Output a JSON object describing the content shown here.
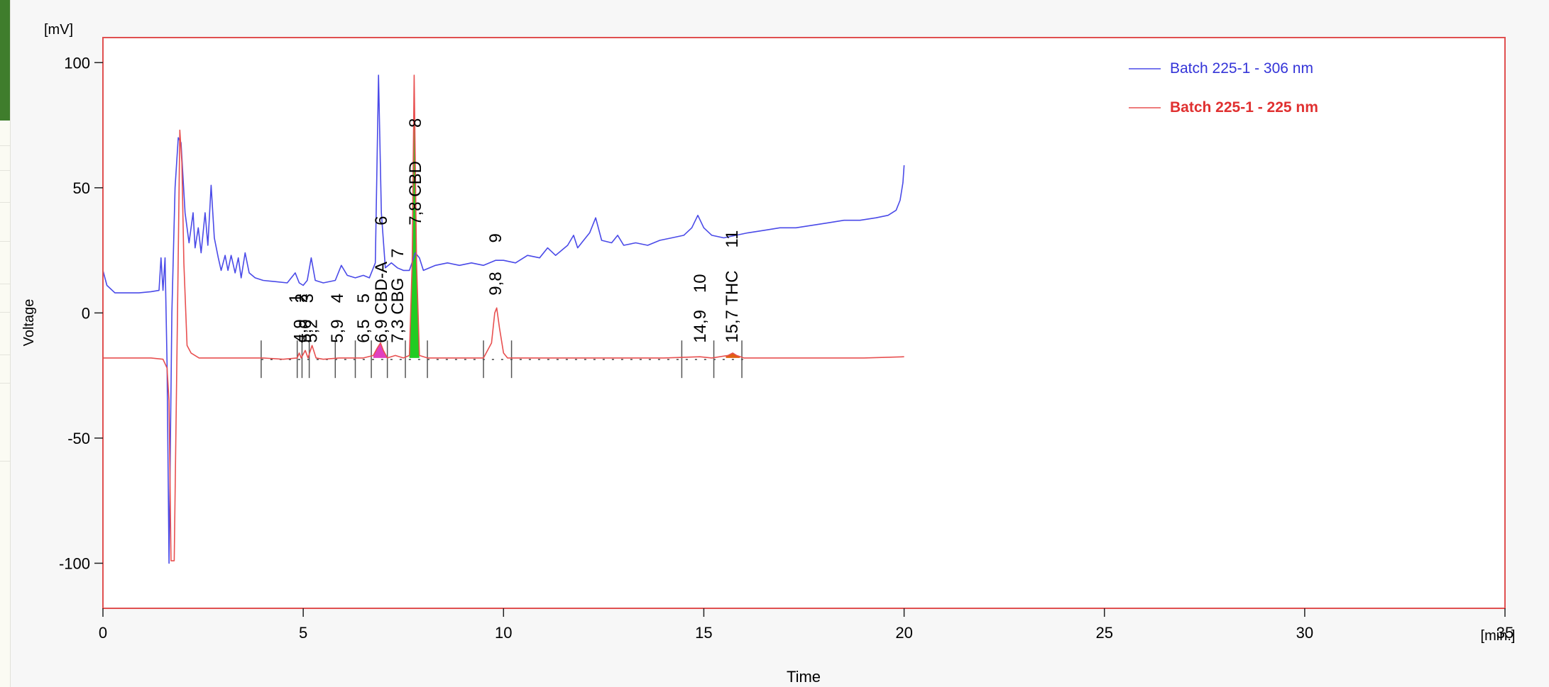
{
  "window": {
    "side_panel_color": "#3f7d2c"
  },
  "chart_data": {
    "type": "line",
    "xlabel": "Time",
    "ylabel": "Voltage",
    "x_unit": "[min.]",
    "y_unit": "[mV]",
    "xlim": [
      0,
      35
    ],
    "ylim": [
      -118,
      110
    ],
    "x_ticks": [
      0,
      5,
      10,
      15,
      20,
      25,
      30,
      35
    ],
    "y_ticks": [
      -100,
      -50,
      0,
      50,
      100
    ],
    "grid": false,
    "legend_position": "top-right",
    "plot_border_color": "#e05050",
    "series": [
      {
        "name": "Batch 225-1 - 306 nm",
        "color": "#4a4ae8",
        "points": [
          [
            0,
            17
          ],
          [
            0.1,
            11
          ],
          [
            0.3,
            8
          ],
          [
            0.6,
            8
          ],
          [
            0.9,
            8
          ],
          [
            1.2,
            8.5
          ],
          [
            1.4,
            9
          ],
          [
            1.45,
            22
          ],
          [
            1.5,
            9
          ],
          [
            1.55,
            22
          ],
          [
            1.6,
            -20
          ],
          [
            1.65,
            -100
          ],
          [
            1.72,
            0
          ],
          [
            1.8,
            50
          ],
          [
            1.88,
            70
          ],
          [
            1.95,
            68
          ],
          [
            2.05,
            40
          ],
          [
            2.15,
            28
          ],
          [
            2.25,
            40
          ],
          [
            2.3,
            26
          ],
          [
            2.38,
            34
          ],
          [
            2.45,
            24
          ],
          [
            2.55,
            40
          ],
          [
            2.62,
            27
          ],
          [
            2.7,
            51
          ],
          [
            2.78,
            30
          ],
          [
            2.88,
            22
          ],
          [
            2.95,
            17
          ],
          [
            3.05,
            23
          ],
          [
            3.12,
            17
          ],
          [
            3.2,
            23
          ],
          [
            3.3,
            16
          ],
          [
            3.38,
            22
          ],
          [
            3.45,
            14
          ],
          [
            3.55,
            24
          ],
          [
            3.65,
            16
          ],
          [
            3.8,
            14
          ],
          [
            4.0,
            13
          ],
          [
            4.3,
            12.5
          ],
          [
            4.6,
            12
          ],
          [
            4.8,
            16
          ],
          [
            4.9,
            12
          ],
          [
            5.0,
            11
          ],
          [
            5.1,
            13
          ],
          [
            5.2,
            22
          ],
          [
            5.3,
            13
          ],
          [
            5.5,
            12
          ],
          [
            5.8,
            13
          ],
          [
            5.95,
            19
          ],
          [
            6.1,
            15
          ],
          [
            6.3,
            14
          ],
          [
            6.5,
            15
          ],
          [
            6.65,
            14
          ],
          [
            6.8,
            20
          ],
          [
            6.88,
            95
          ],
          [
            6.95,
            40
          ],
          [
            7.05,
            18
          ],
          [
            7.2,
            20
          ],
          [
            7.35,
            18
          ],
          [
            7.5,
            17
          ],
          [
            7.65,
            17
          ],
          [
            7.8,
            24
          ],
          [
            7.9,
            22
          ],
          [
            8.0,
            17
          ],
          [
            8.3,
            19
          ],
          [
            8.6,
            20
          ],
          [
            8.9,
            19
          ],
          [
            9.2,
            20
          ],
          [
            9.5,
            19
          ],
          [
            9.8,
            21
          ],
          [
            10.0,
            21
          ],
          [
            10.3,
            20
          ],
          [
            10.6,
            23
          ],
          [
            10.9,
            22
          ],
          [
            11.1,
            26
          ],
          [
            11.3,
            23
          ],
          [
            11.6,
            27
          ],
          [
            11.75,
            31
          ],
          [
            11.85,
            26
          ],
          [
            12.0,
            29
          ],
          [
            12.15,
            32
          ],
          [
            12.3,
            38
          ],
          [
            12.45,
            29
          ],
          [
            12.7,
            28
          ],
          [
            12.85,
            31
          ],
          [
            13.0,
            27
          ],
          [
            13.3,
            28
          ],
          [
            13.6,
            27
          ],
          [
            13.9,
            29
          ],
          [
            14.2,
            30
          ],
          [
            14.5,
            31
          ],
          [
            14.7,
            34
          ],
          [
            14.85,
            39
          ],
          [
            15.0,
            34
          ],
          [
            15.2,
            31
          ],
          [
            15.5,
            30
          ],
          [
            15.8,
            31
          ],
          [
            16.1,
            32
          ],
          [
            16.5,
            33
          ],
          [
            16.9,
            34
          ],
          [
            17.3,
            34
          ],
          [
            17.7,
            35
          ],
          [
            18.1,
            36
          ],
          [
            18.5,
            37
          ],
          [
            18.9,
            37
          ],
          [
            19.3,
            38
          ],
          [
            19.6,
            39
          ],
          [
            19.8,
            41
          ],
          [
            19.9,
            45
          ],
          [
            19.97,
            52
          ],
          [
            20.0,
            59
          ]
        ]
      },
      {
        "name": "Batch 225-1 - 225 nm",
        "color": "#e85050",
        "points": [
          [
            0,
            -18
          ],
          [
            1.2,
            -18
          ],
          [
            1.5,
            -18.5
          ],
          [
            1.6,
            -22
          ],
          [
            1.65,
            -35
          ],
          [
            1.7,
            -99
          ],
          [
            1.78,
            -99
          ],
          [
            1.82,
            -50
          ],
          [
            1.87,
            10
          ],
          [
            1.92,
            73
          ],
          [
            1.97,
            60
          ],
          [
            2.02,
            20
          ],
          [
            2.1,
            -13
          ],
          [
            2.2,
            -16
          ],
          [
            2.4,
            -18
          ],
          [
            2.8,
            -18
          ],
          [
            3.5,
            -18
          ],
          [
            4.0,
            -18
          ],
          [
            4.5,
            -18.5
          ],
          [
            4.85,
            -18
          ],
          [
            4.9,
            -16
          ],
          [
            4.95,
            -18
          ],
          [
            5.05,
            -15
          ],
          [
            5.12,
            -18
          ],
          [
            5.22,
            -13
          ],
          [
            5.32,
            -18
          ],
          [
            5.5,
            -18.5
          ],
          [
            5.9,
            -18
          ],
          [
            6.2,
            -18
          ],
          [
            6.5,
            -18
          ],
          [
            6.75,
            -17
          ],
          [
            6.85,
            -14
          ],
          [
            6.93,
            -12
          ],
          [
            7.0,
            -15
          ],
          [
            7.1,
            -18
          ],
          [
            7.3,
            -17
          ],
          [
            7.5,
            -18
          ],
          [
            7.65,
            -17
          ],
          [
            7.72,
            20
          ],
          [
            7.77,
            95
          ],
          [
            7.83,
            20
          ],
          [
            7.9,
            -17
          ],
          [
            8.1,
            -18
          ],
          [
            8.5,
            -18
          ],
          [
            9.0,
            -18
          ],
          [
            9.5,
            -18
          ],
          [
            9.7,
            -12
          ],
          [
            9.78,
            0
          ],
          [
            9.83,
            2
          ],
          [
            9.9,
            -6
          ],
          [
            10.0,
            -16
          ],
          [
            10.1,
            -18
          ],
          [
            11.0,
            -18
          ],
          [
            12.0,
            -18
          ],
          [
            13.0,
            -18
          ],
          [
            14.0,
            -18
          ],
          [
            14.9,
            -17.5
          ],
          [
            15.2,
            -18
          ],
          [
            15.6,
            -17
          ],
          [
            15.72,
            -16
          ],
          [
            15.82,
            -17
          ],
          [
            16.0,
            -18
          ],
          [
            17.0,
            -18
          ],
          [
            18.0,
            -18
          ],
          [
            19.0,
            -18
          ],
          [
            20.0,
            -17.5
          ]
        ]
      }
    ],
    "filled_peaks": [
      {
        "start": 6.75,
        "end": 7.1,
        "color": "#e040c0",
        "series": 1
      },
      {
        "start": 7.65,
        "end": 7.9,
        "color": "#22cc22",
        "series": 1
      },
      {
        "start": 15.55,
        "end": 15.9,
        "color": "#e06010",
        "series": 1
      }
    ],
    "peak_labels": [
      {
        "text": "1",
        "x": 4.8,
        "y": 4
      },
      {
        "text": "4,9",
        "x": 4.92,
        "y": -12
      },
      {
        "text": "2",
        "x": 4.95,
        "y": 4
      },
      {
        "text": "5,0",
        "x": 5.05,
        "y": -12
      },
      {
        "text": "3",
        "x": 5.1,
        "y": 4
      },
      {
        "text": "5,2",
        "x": 5.2,
        "y": -12
      },
      {
        "text": "4",
        "x": 5.85,
        "y": 4
      },
      {
        "text": "5,9",
        "x": 5.85,
        "y": -12
      },
      {
        "text": "5",
        "x": 6.5,
        "y": 4
      },
      {
        "text": "6,5",
        "x": 6.5,
        "y": -12
      },
      {
        "text": "6",
        "x": 6.95,
        "y": 35
      },
      {
        "text": "6,9 CBD-A",
        "x": 6.95,
        "y": -12
      },
      {
        "text": "7",
        "x": 7.35,
        "y": 22
      },
      {
        "text": "7,3 CBG",
        "x": 7.35,
        "y": -12
      },
      {
        "text": "8",
        "x": 7.8,
        "y": 74
      },
      {
        "text": "7,8 CBD",
        "x": 7.8,
        "y": 35
      },
      {
        "text": "9",
        "x": 9.8,
        "y": 28
      },
      {
        "text": "9,8",
        "x": 9.8,
        "y": 7
      },
      {
        "text": "10",
        "x": 14.9,
        "y": 8
      },
      {
        "text": "14,9",
        "x": 14.9,
        "y": -12
      },
      {
        "text": "11",
        "x": 15.7,
        "y": 26
      },
      {
        "text": "15,7 THC",
        "x": 15.7,
        "y": -12
      }
    ],
    "baseline_marks": [
      3.95,
      4.85,
      4.97,
      5.15,
      5.8,
      6.3,
      6.7,
      7.1,
      7.55,
      8.1,
      9.5,
      10.2,
      14.45,
      15.25,
      15.95
    ]
  }
}
